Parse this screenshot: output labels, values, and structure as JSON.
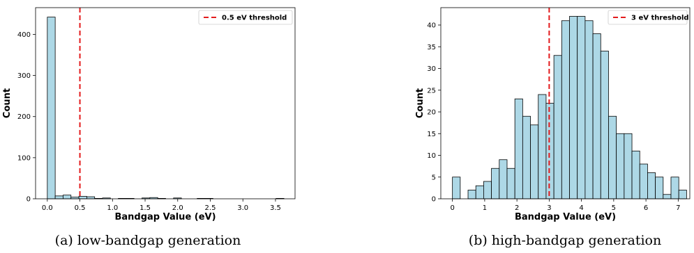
{
  "chart_data": [
    {
      "type": "bar",
      "subtype": "histogram",
      "caption": "(a) low-bandgap generation",
      "xlabel": "Bandgap Value (eV)",
      "ylabel": "Count",
      "xlim": [
        -0.18,
        3.8
      ],
      "ylim": [
        0,
        465
      ],
      "xticks": [
        "0.0",
        "0.5",
        "1.0",
        "1.5",
        "2.0",
        "2.5",
        "3.0",
        "3.5"
      ],
      "yticks": [
        "0",
        "100",
        "200",
        "300",
        "400"
      ],
      "bin_start": 0.0,
      "bin_width": 0.121,
      "values": [
        442,
        7,
        9,
        4,
        6,
        5,
        1,
        2,
        0,
        1,
        1,
        0,
        2,
        3,
        1,
        0,
        2,
        0,
        0,
        1,
        1,
        0,
        0,
        0,
        0,
        0,
        0,
        0,
        0,
        1
      ],
      "bar_color": "#add8e6",
      "threshold": {
        "x": 0.5,
        "label": "0.5 eV threshold",
        "color": "#e31a1c"
      },
      "legend": "top-right",
      "grid": false
    },
    {
      "type": "bar",
      "subtype": "histogram",
      "caption": "(b) high-bandgap generation",
      "xlabel": "Bandgap Value (eV)",
      "ylabel": "Count",
      "xlim": [
        -0.36,
        7.36
      ],
      "ylim": [
        0,
        44
      ],
      "xticks": [
        "0",
        "1",
        "2",
        "3",
        "4",
        "5",
        "6",
        "7"
      ],
      "yticks": [
        "0",
        "5",
        "10",
        "15",
        "20",
        "25",
        "30",
        "35",
        "40"
      ],
      "bin_start": 0.0,
      "bin_width": 0.242,
      "values": [
        5,
        0,
        2,
        3,
        4,
        7,
        9,
        7,
        23,
        19,
        17,
        24,
        22,
        33,
        41,
        42,
        42,
        41,
        38,
        34,
        19,
        15,
        15,
        11,
        8,
        6,
        5,
        1,
        5,
        2
      ],
      "bar_color": "#add8e6",
      "threshold": {
        "x": 3,
        "label": "3 eV threshold",
        "color": "#e31a1c"
      },
      "legend": "top-right",
      "grid": false
    }
  ]
}
